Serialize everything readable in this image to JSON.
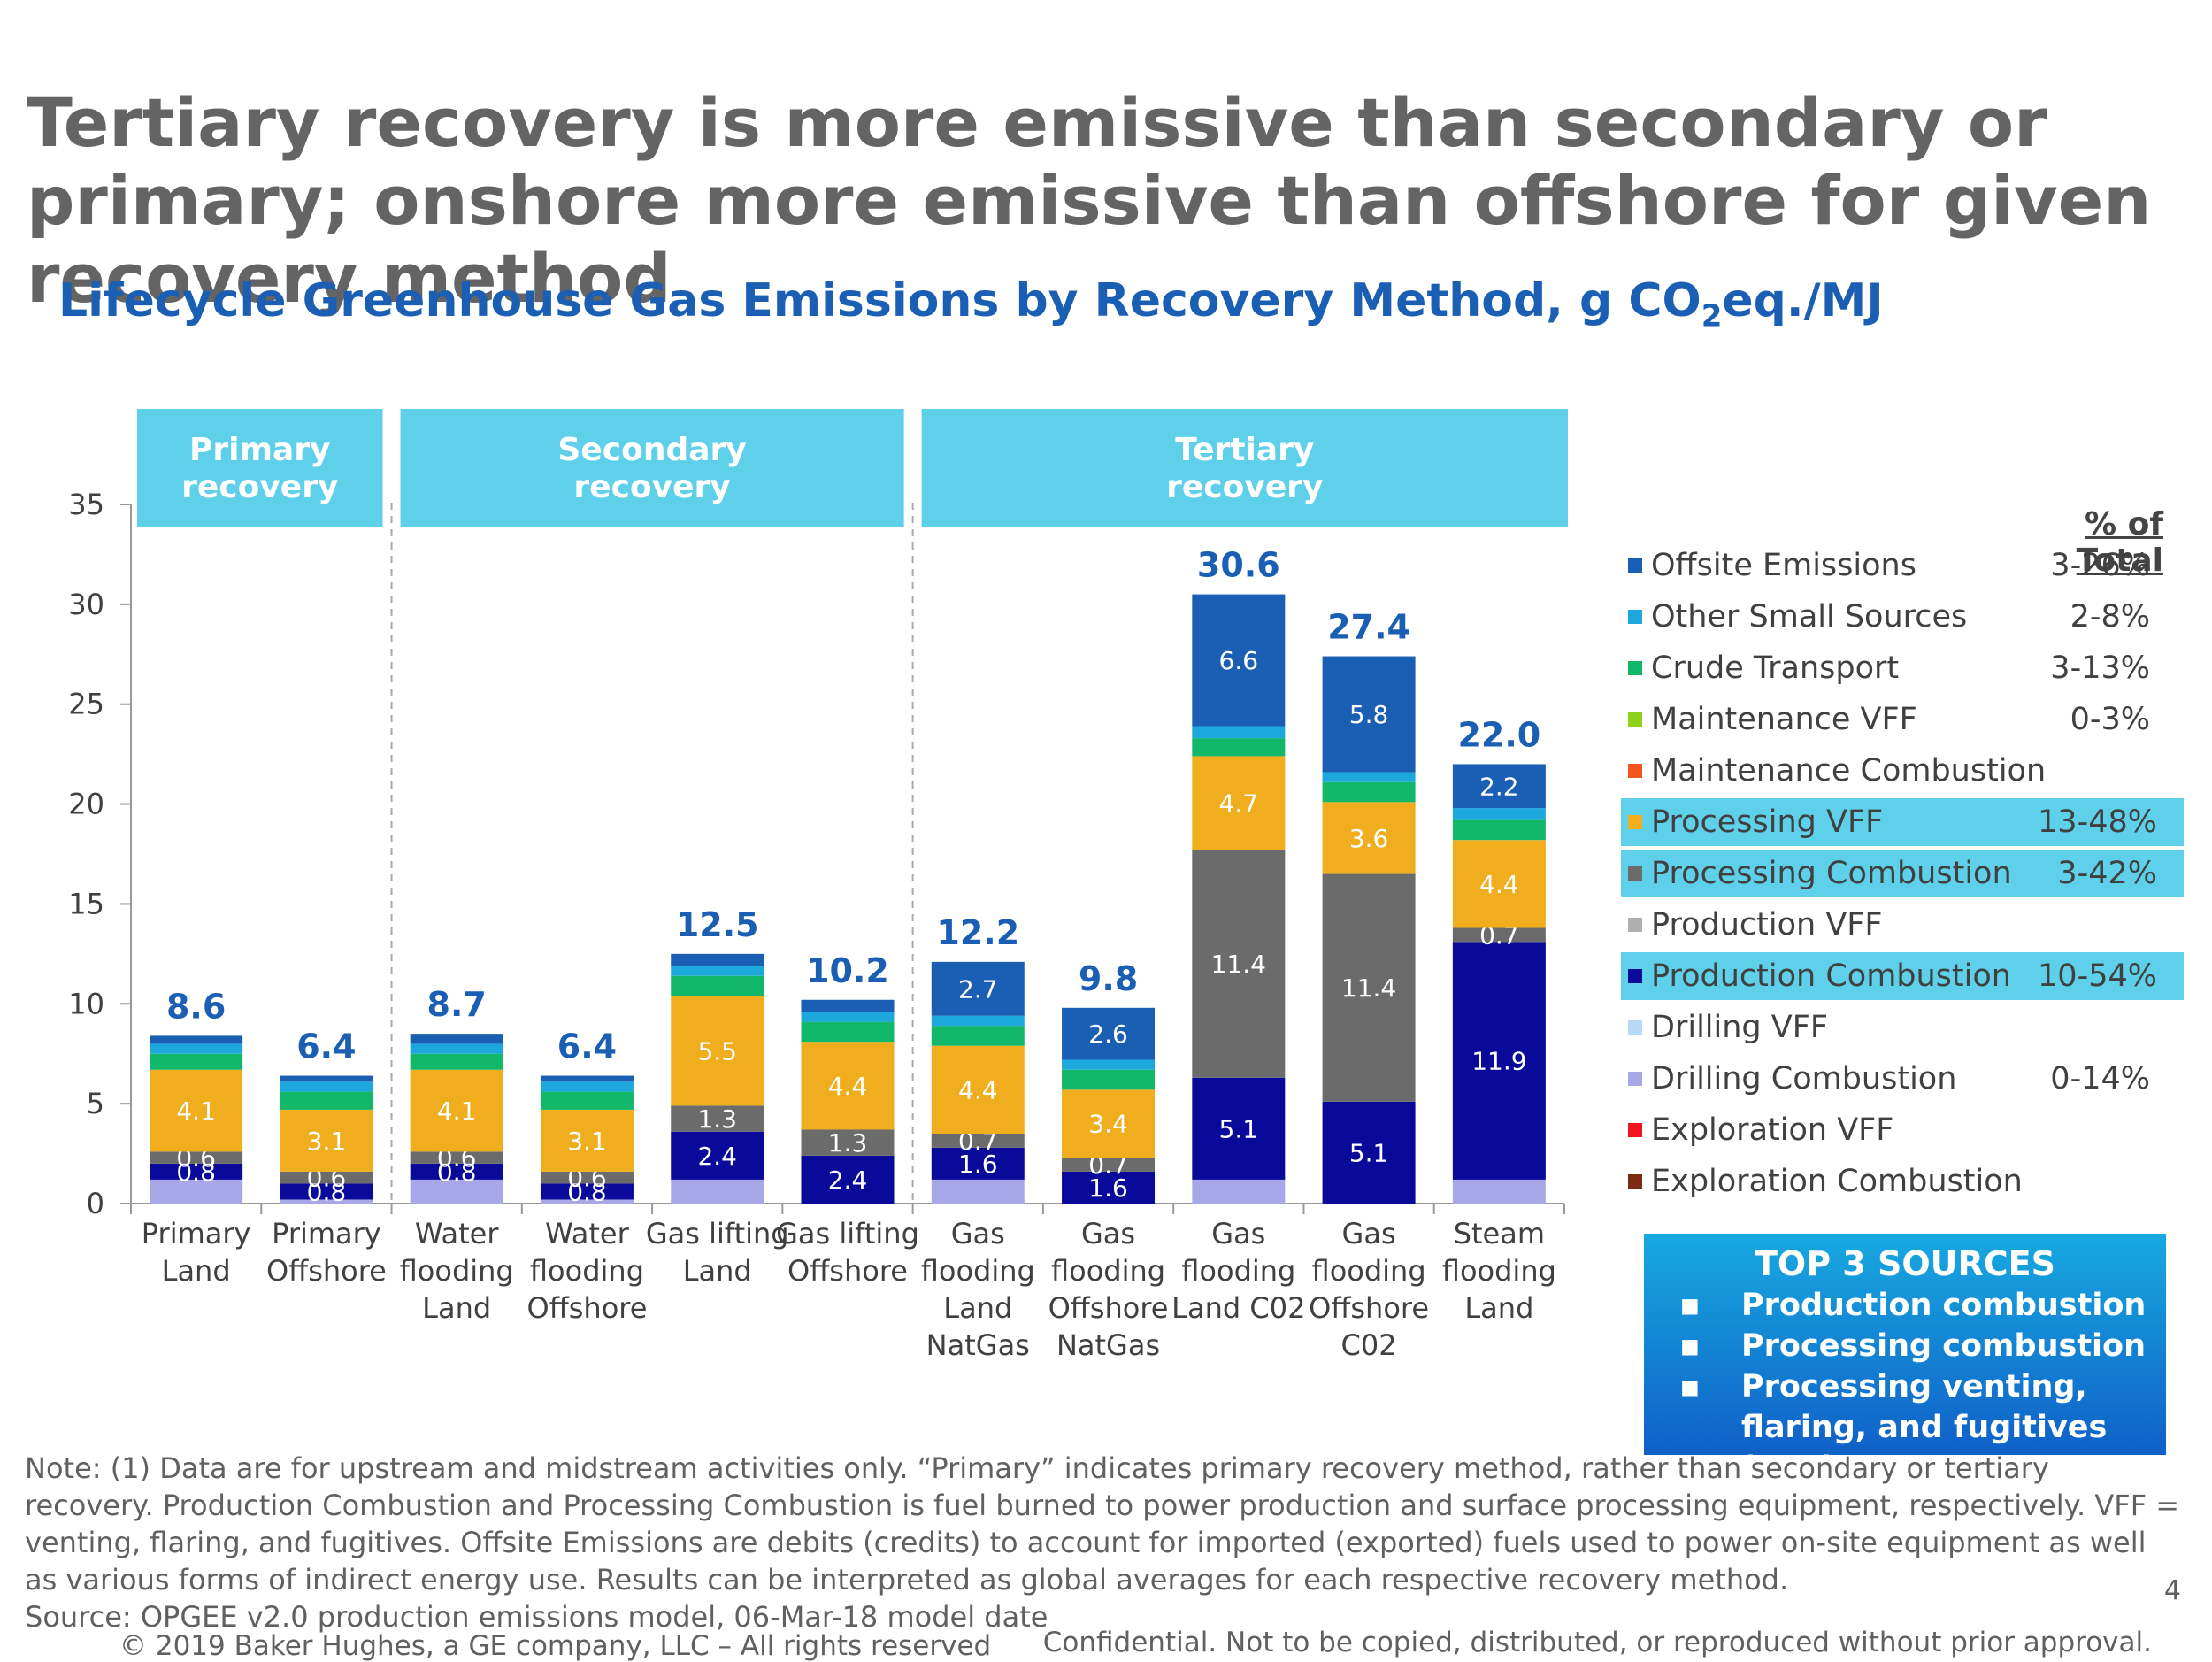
{
  "slide": {
    "title": "Tertiary recovery is more emissive than secondary or primary; onshore more emissive than offshore for given recovery method",
    "subtitle_pre": "Lifecycle Greenhouse Gas Emissions by Recovery Method, g CO",
    "subtitle_sub": "2",
    "subtitle_post": "eq./MJ",
    "page_number": "4"
  },
  "chart_data": {
    "type": "bar",
    "stacked": true,
    "ylim": [
      0,
      35
    ],
    "yticks": [
      0,
      5,
      10,
      15,
      20,
      25,
      30,
      35
    ],
    "groups": [
      {
        "label": [
          "Primary",
          "recovery"
        ],
        "from": 0,
        "to": 1
      },
      {
        "label": [
          "Secondary",
          "recovery"
        ],
        "from": 2,
        "to": 5
      },
      {
        "label": [
          "Tertiary",
          "recovery"
        ],
        "from": 6,
        "to": 10
      }
    ],
    "categories": [
      [
        "Primary",
        "Land"
      ],
      [
        "Primary",
        "Offshore"
      ],
      [
        "Water",
        "flooding",
        "Land"
      ],
      [
        "Water",
        "flooding",
        "Offshore"
      ],
      [
        "Gas lifting",
        "Land"
      ],
      [
        "Gas lifting",
        "Offshore"
      ],
      [
        "Gas",
        "flooding",
        "Land",
        "NatGas"
      ],
      [
        "Gas",
        "flooding",
        "Offshore",
        "NatGas"
      ],
      [
        "Gas",
        "flooding",
        "Land C02"
      ],
      [
        "Gas",
        "flooding",
        "Offshore",
        "C02"
      ],
      [
        "Steam",
        "flooding",
        "Land"
      ]
    ],
    "totals": [
      "8.6",
      "6.4",
      "8.7",
      "6.4",
      "12.5",
      "10.2",
      "12.2",
      "9.8",
      "30.6",
      "27.4",
      "22.0"
    ],
    "series": [
      {
        "name": "Drilling Combustion",
        "color": "#a8a8e8",
        "values": [
          1.2,
          0.2,
          1.2,
          0.2,
          1.2,
          0,
          1.2,
          0,
          1.2,
          0,
          1.2
        ]
      },
      {
        "name": "Production Combustion",
        "color": "#0a0a9a",
        "values": [
          0.8,
          0.8,
          0.8,
          0.8,
          2.4,
          2.4,
          1.6,
          1.6,
          5.1,
          5.1,
          11.9
        ],
        "labels": [
          "0.8",
          "0.8",
          "0.8",
          "0.8",
          "2.4",
          "2.4",
          "1.6",
          "1.6",
          "5.1",
          "5.1",
          "11.9"
        ]
      },
      {
        "name": "Processing Combustion",
        "color": "#6b6b6b",
        "values": [
          0.6,
          0.6,
          0.6,
          0.6,
          1.3,
          1.3,
          0.7,
          0.7,
          11.4,
          11.4,
          0.7
        ],
        "labels": [
          "0.6",
          "0.6",
          "0.6",
          "0.6",
          "1.3",
          "1.3",
          "0.7",
          "0.7",
          "11.4",
          "11.4",
          "0.7"
        ]
      },
      {
        "name": "Processing VFF",
        "color": "#f0ad1e",
        "values": [
          4.1,
          3.1,
          4.1,
          3.1,
          5.5,
          4.4,
          4.4,
          3.4,
          4.7,
          3.6,
          4.4
        ],
        "labels": [
          "4.1",
          "3.1",
          "4.1",
          "3.1",
          "5.5",
          "4.4",
          "4.4",
          "3.4",
          "4.7",
          "3.6",
          "4.4"
        ]
      },
      {
        "name": "Crude Transport",
        "color": "#12b86a",
        "values": [
          0.8,
          0.9,
          0.8,
          0.9,
          1.0,
          1.0,
          1.0,
          1.0,
          0.9,
          1.0,
          1.0
        ]
      },
      {
        "name": "Other Small Sources",
        "color": "#1da8dd",
        "values": [
          0.5,
          0.5,
          0.5,
          0.5,
          0.5,
          0.5,
          0.5,
          0.5,
          0.6,
          0.5,
          0.6
        ]
      },
      {
        "name": "Offsite Emissions",
        "color": "#1a5fb4",
        "values": [
          0.4,
          0.3,
          0.5,
          0.3,
          0.6,
          0.6,
          2.7,
          2.6,
          6.6,
          5.8,
          2.2
        ],
        "labels": [
          "",
          "",
          "",
          "",
          "",
          "",
          "2.7",
          "2.6",
          "6.6",
          "5.8",
          "2.2"
        ]
      }
    ]
  },
  "legend": {
    "pct_header": "% of Total",
    "items": [
      {
        "label": "Offsite Emissions",
        "color": "#1a5fb4",
        "pct": "3-26%",
        "highlight": false
      },
      {
        "label": "Other Small Sources",
        "color": "#1da8dd",
        "pct": "2-8%",
        "highlight": false
      },
      {
        "label": "Crude Transport",
        "color": "#12b86a",
        "pct": "3-13%",
        "highlight": false
      },
      {
        "label": "Maintenance VFF",
        "color": "#8fd11d",
        "pct": "0-3%",
        "highlight": false
      },
      {
        "label": "Maintenance Combustion",
        "color": "#f5561d",
        "pct": "",
        "highlight": false
      },
      {
        "label": "Processing VFF",
        "color": "#f0ad1e",
        "pct": "13-48%",
        "highlight": true
      },
      {
        "label": "Processing Combustion",
        "color": "#6b6b6b",
        "pct": "3-42%",
        "highlight": true
      },
      {
        "label": "Production VFF",
        "color": "#b0b0b0",
        "pct": "",
        "highlight": false
      },
      {
        "label": "Production Combustion",
        "color": "#0a0a9a",
        "pct": "10-54%",
        "highlight": true
      },
      {
        "label": "Drilling VFF",
        "color": "#b8d8f5",
        "pct": "",
        "highlight": false
      },
      {
        "label": "Drilling Combustion",
        "color": "#a8a8e8",
        "pct": "0-14%",
        "highlight": false
      },
      {
        "label": "Exploration VFF",
        "color": "#f0141e",
        "pct": "",
        "highlight": false
      },
      {
        "label": "Exploration Combustion",
        "color": "#7a2d10",
        "pct": "",
        "highlight": false
      }
    ]
  },
  "top3": {
    "title": "TOP 3 SOURCES",
    "items": [
      "Production combustion",
      "Processing combustion",
      "Processing venting, flaring, and fugitives (VFF)"
    ]
  },
  "footer": {
    "note": "Note: (1) Data are for upstream and midstream activities only. “Primary” indicates primary recovery method, rather than secondary or tertiary recovery. Production Combustion and Processing Combustion is fuel burned to power production and surface processing equipment, respectively. VFF = venting, flaring, and fugitives. Offsite Emissions are debits (credits) to account for imported (exported) fuels used to power on-site equipment as well as various forms of indirect energy use. Results can be interpreted as global averages for each respective recovery method.",
    "source": "Source: OPGEE v2.0 production emissions model, 06-Mar-18 model date",
    "copyright": "© 2019 Baker Hughes, a GE company, LLC – All rights reserved",
    "confidential": "Confidential. Not to be copied, distributed, or reproduced without prior approval."
  }
}
